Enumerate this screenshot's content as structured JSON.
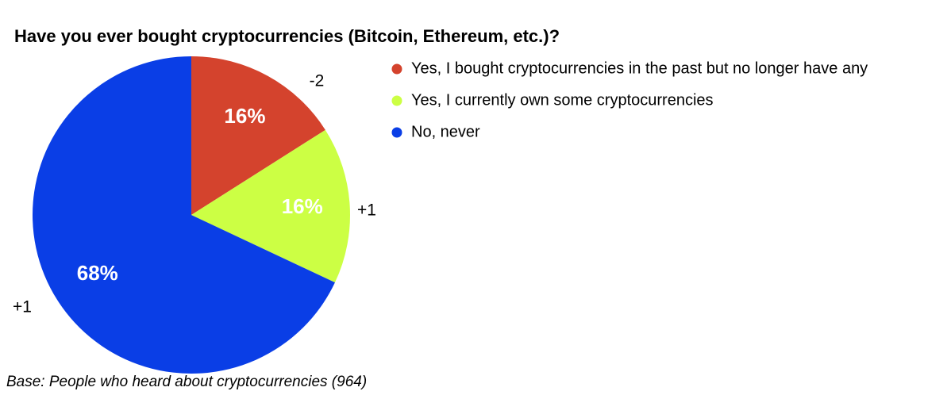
{
  "chart_data": {
    "type": "pie",
    "title": "Have you ever bought cryptocurrencies (Bitcoin, Ethereum, etc.)?",
    "categories": [
      "Yes, I bought cryptocurrencies in the past but no longer have any",
      "Yes, I currently own some cryptocurrencies",
      "No, never"
    ],
    "values": [
      16,
      16,
      68
    ],
    "value_labels": [
      "16%",
      "16%",
      "68%"
    ],
    "colors": [
      "#d4432d",
      "#ccff44",
      "#0a3ee6"
    ],
    "annotations": [
      "-2",
      "+1",
      "+1"
    ],
    "note": "Base: People who heard about cryptocurrencies (964)",
    "legend": "right"
  }
}
